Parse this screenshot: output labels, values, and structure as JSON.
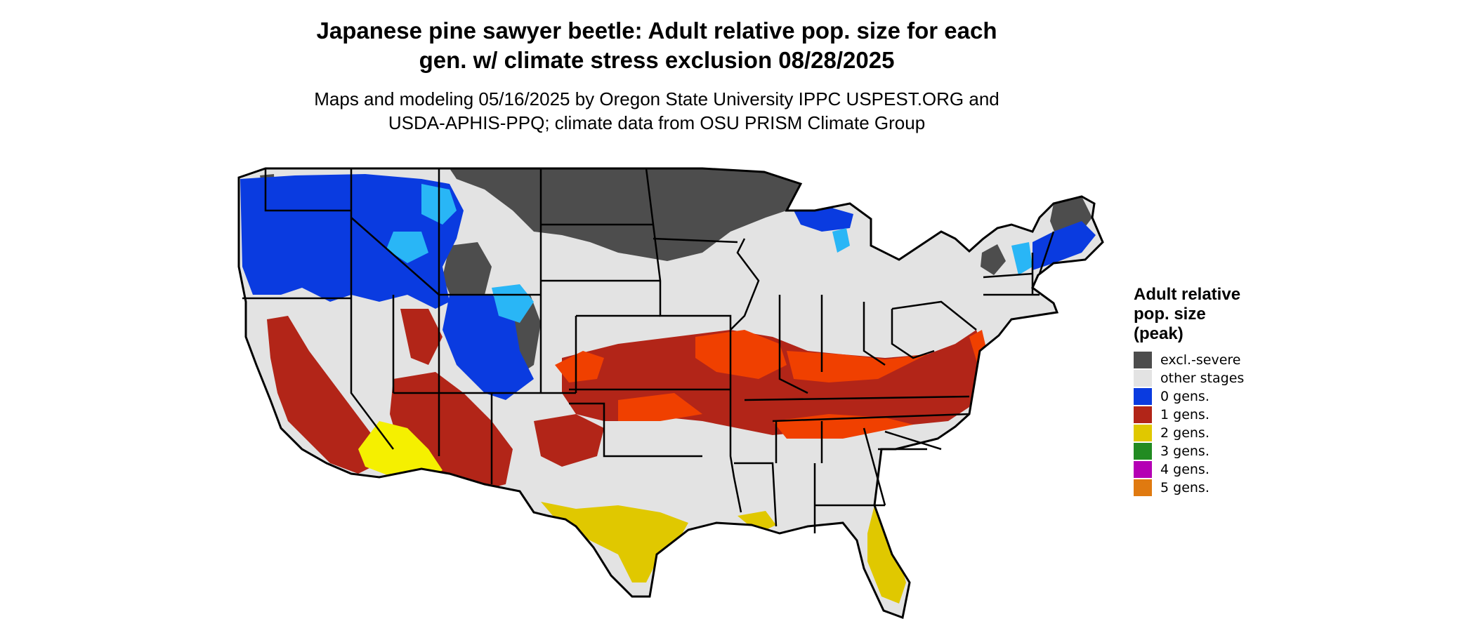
{
  "title_line1": "Japanese pine sawyer beetle: Adult relative pop. size for each",
  "title_line2": "gen. w/ climate stress exclusion 08/28/2025",
  "subtitle_line1": "Maps and modeling 05/16/2025 by Oregon State University IPPC USPEST.ORG and",
  "subtitle_line2": "USDA-APHIS-PPQ; climate data from OSU PRISM Climate Group",
  "legend": {
    "title_lines": [
      "Adult relative",
      "pop. size",
      "(peak)"
    ],
    "items": [
      {
        "label": "excl.-severe",
        "color": "#4d4d4d"
      },
      {
        "label": "other stages",
        "color": "#e3e3e3"
      },
      {
        "label": "0 gens.",
        "color": "#0a3be0"
      },
      {
        "label": "1 gens.",
        "color": "#b22518"
      },
      {
        "label": "2 gens.",
        "color": "#e0c800"
      },
      {
        "label": "3 gens.",
        "color": "#228b22"
      },
      {
        "label": "4 gens.",
        "color": "#b400b4"
      },
      {
        "label": "5 gens.",
        "color": "#e07a10"
      }
    ]
  },
  "map_colors": {
    "land": "#e3e3e3",
    "excluded": "#4d4d4d",
    "zero_gen": "#0a3be0",
    "zero_gen_light": "#29b6f6",
    "one_gen": "#b22518",
    "one_gen_bright": "#f04000",
    "two_gen": "#e0c800",
    "two_gen_bright": "#f5f000",
    "border": "#000000"
  }
}
